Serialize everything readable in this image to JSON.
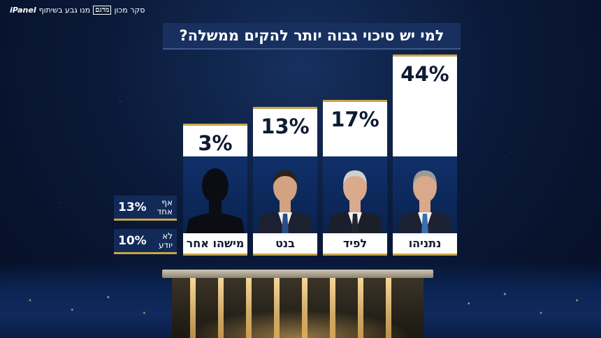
{
  "brand": {
    "text": "סקר מכון",
    "logo": "מדגם",
    "text2": "מנו גבע בשיתוף",
    "panel": "iPanel"
  },
  "title": "למי יש סיכוי גבוה יותר להקים ממשלה?",
  "candidates": [
    {
      "name": "נתניהו",
      "value_label": "44%",
      "icon": "portrait-netanyahu"
    },
    {
      "name": "לפיד",
      "value_label": "17%",
      "icon": "portrait-lapid"
    },
    {
      "name": "בנט",
      "value_label": "13%",
      "icon": "portrait-bennett"
    },
    {
      "name": "מישהו אחר",
      "value_label": "3%",
      "icon": "silhouette-icon"
    }
  ],
  "side": [
    {
      "label_line1": "אף",
      "label_line2": "אחד",
      "value_label": "13%"
    },
    {
      "label_line1": "לא",
      "label_line2": "יודע",
      "value_label": "10%"
    }
  ],
  "chart_data": {
    "type": "bar",
    "title": "למי יש סיכוי גבוה יותר להקים ממשלה?",
    "categories": [
      "נתניהו",
      "לפיד",
      "בנט",
      "מישהו אחר"
    ],
    "values": [
      44,
      17,
      13,
      3
    ],
    "extra": [
      {
        "category": "אף אחד",
        "value": 13
      },
      {
        "category": "לא יודע",
        "value": 10
      }
    ],
    "unit": "%"
  },
  "colors": {
    "accent_gold": "#c9a54a",
    "panel_navy": "#17305f",
    "bar_white": "#ffffff"
  }
}
